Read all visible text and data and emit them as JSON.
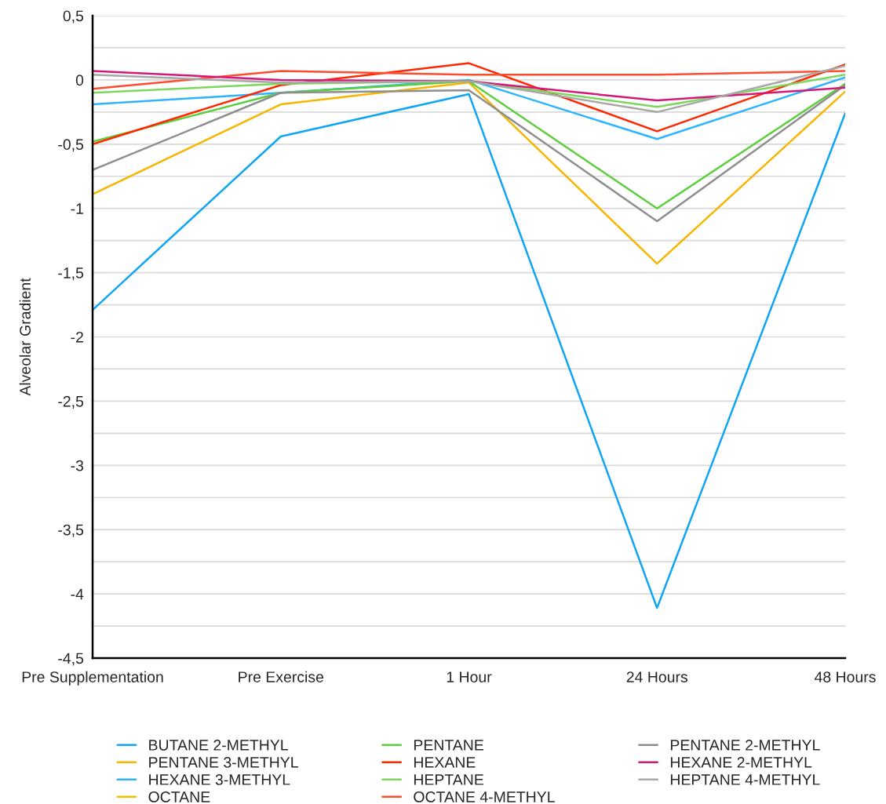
{
  "chart_data": {
    "type": "line",
    "ylabel": "Alveolar Gradient",
    "categories": [
      "Pre Supplementation",
      "Pre Exercise",
      "1 Hour",
      "24 Hours",
      "48 Hours"
    ],
    "series": [
      {
        "name": "BUTANE 2-METHYL",
        "color": "#0fa5f5",
        "values": [
          -1.79,
          -0.44,
          -0.11,
          -4.11,
          -0.26
        ]
      },
      {
        "name": "PENTANE 3-METHYL",
        "color": "#f7b500",
        "values": [
          -0.89,
          -0.19,
          -0.02,
          -1.43,
          -0.09
        ]
      },
      {
        "name": "HEXANE 3-METHYL",
        "color": "#2db4ff",
        "values": [
          -0.19,
          -0.1,
          0.0,
          -0.46,
          0.02
        ]
      },
      {
        "name": "OCTANE",
        "color": "#f2c200",
        "values": [
          null,
          null,
          null,
          null,
          null
        ]
      },
      {
        "name": "PENTANE",
        "color": "#5bcf3c",
        "values": [
          -0.48,
          -0.1,
          -0.01,
          -1.0,
          -0.03
        ]
      },
      {
        "name": "HEXANE",
        "color": "#ff2600",
        "values": [
          -0.5,
          -0.04,
          0.13,
          -0.4,
          0.12
        ]
      },
      {
        "name": "HEPTANE",
        "color": "#7bd85c",
        "values": [
          -0.1,
          -0.03,
          -0.01,
          -0.21,
          0.04
        ]
      },
      {
        "name": "OCTANE 4-METHYL",
        "color": "#ff4b2e",
        "values": [
          -0.07,
          0.07,
          0.04,
          0.04,
          0.07
        ]
      },
      {
        "name": "PENTANE 2-METHYL",
        "color": "#8e8e8e",
        "values": [
          -0.7,
          -0.1,
          -0.08,
          -1.1,
          -0.04
        ]
      },
      {
        "name": "HEXANE 2-METHYL",
        "color": "#d4187a",
        "values": [
          0.07,
          0.0,
          -0.01,
          -0.16,
          -0.06
        ]
      },
      {
        "name": "HEPTANE 4-METHYL",
        "color": "#a8a8a8",
        "values": [
          0.04,
          -0.02,
          -0.01,
          -0.25,
          0.11
        ]
      }
    ],
    "ylim": [
      -4.5,
      0.5
    ],
    "yticks": [
      {
        "value": -4.5,
        "label": "-4,5"
      },
      {
        "value": -4.25,
        "label": null
      },
      {
        "value": -4,
        "label": "-4"
      },
      {
        "value": -3.75,
        "label": null
      },
      {
        "value": -3.5,
        "label": "-3,5"
      },
      {
        "value": -3.25,
        "label": null
      },
      {
        "value": -3,
        "label": "-3"
      },
      {
        "value": -2.75,
        "label": null
      },
      {
        "value": -2.5,
        "label": "-2,5"
      },
      {
        "value": -2.25,
        "label": null
      },
      {
        "value": -2,
        "label": "-2"
      },
      {
        "value": -1.75,
        "label": null
      },
      {
        "value": -1.5,
        "label": "-1,5"
      },
      {
        "value": -1.25,
        "label": null
      },
      {
        "value": -1,
        "label": "-1"
      },
      {
        "value": -0.75,
        "label": null
      },
      {
        "value": -0.5,
        "label": "-0,5"
      },
      {
        "value": -0.25,
        "label": null
      },
      {
        "value": 0,
        "label": "0"
      },
      {
        "value": 0.25,
        "label": null
      },
      {
        "value": 0.5,
        "label": "0,5"
      }
    ],
    "grid": "y",
    "legend": "bottom",
    "marker": "none",
    "line_style": "solid"
  }
}
